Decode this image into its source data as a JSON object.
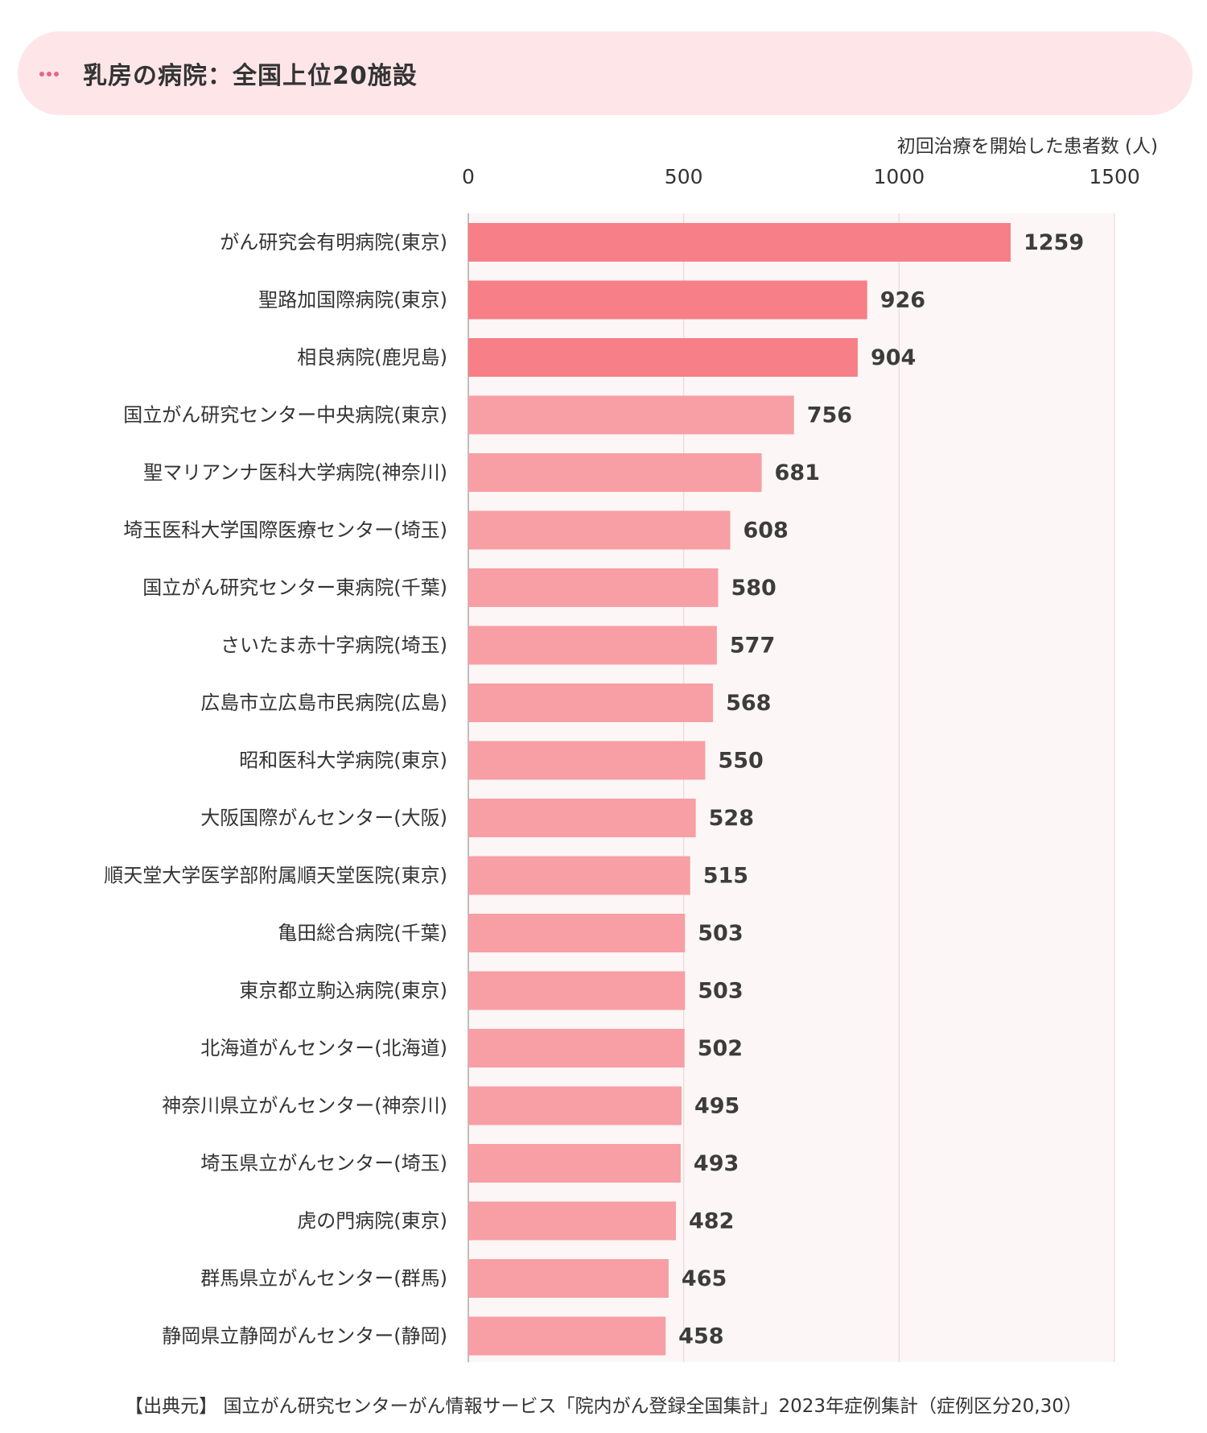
{
  "header": {
    "title": "乳房の病院：全国上位20施設",
    "icon": "more-dots-icon"
  },
  "chart_data": {
    "type": "bar",
    "orientation": "horizontal",
    "title": "乳房の病院：全国上位20施設",
    "xlabel": "初回治療を開始した患者数 (人)",
    "ylabel": "",
    "xlim": [
      0,
      1500
    ],
    "xticks": [
      0,
      500,
      1000,
      1500
    ],
    "xtick_labels": [
      "0",
      "500",
      "1000",
      "1500"
    ],
    "axis_position": "top",
    "grid": true,
    "categories": [
      "がん研究会有明病院(東京)",
      "聖路加国際病院(東京)",
      "相良病院(鹿児島)",
      "国立がん研究センター中央病院(東京)",
      "聖マリアンナ医科大学病院(神奈川)",
      "埼玉医科大学国際医療センター(埼玉)",
      "国立がん研究センター東病院(千葉)",
      "さいたま赤十字病院(埼玉)",
      "広島市立広島市民病院(広島)",
      "昭和医科大学病院(東京)",
      "大阪国際がんセンター(大阪)",
      "順天堂大学医学部附属順天堂医院(東京)",
      "亀田総合病院(千葉)",
      "東京都立駒込病院(東京)",
      "北海道がんセンター(北海道)",
      "神奈川県立がんセンター(神奈川)",
      "埼玉県立がんセンター(埼玉)",
      "虎の門病院(東京)",
      "群馬県立がんセンター(群馬)",
      "静岡県立静岡がんセンター(静岡)"
    ],
    "values": [
      1259,
      926,
      904,
      756,
      681,
      608,
      580,
      577,
      568,
      550,
      528,
      515,
      503,
      503,
      502,
      495,
      493,
      482,
      465,
      458
    ],
    "value_labels": [
      "1259",
      "926",
      "904",
      "756",
      "681",
      "608",
      "580",
      "577",
      "568",
      "550",
      "528",
      "515",
      "503",
      "503",
      "502",
      "495",
      "493",
      "482",
      "465",
      "458"
    ],
    "highlight_top_n": 3,
    "colors": {
      "highlight": "#f77f87",
      "bar": "#f79fa4",
      "plot_background": "#fdf6f6",
      "grid": "#ead8d8",
      "axis": "#aaaaaa",
      "title_card": "#fde5e8",
      "dots": "#e8638a"
    }
  },
  "source": "【出典元】 国立がん研究センターがん情報サービス「院内がん登録全国集計」2023年症例集計（症例区分20,30）"
}
